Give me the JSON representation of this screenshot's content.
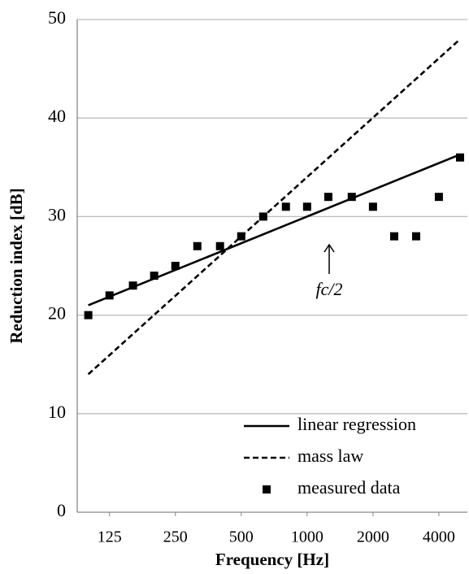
{
  "chart_data": {
    "type": "line",
    "x_label": "Frequency [Hz]",
    "y_label": "Reduction index [dB]",
    "xscale": "log",
    "xlim": [
      89,
      5400
    ],
    "xticks": [
      125,
      250,
      500,
      1000,
      2000,
      4000
    ],
    "ylim": [
      0,
      50
    ],
    "yticks": [
      0,
      10,
      20,
      30,
      40,
      50
    ],
    "grid": true,
    "legend": "lower right",
    "annotation": "fc/2",
    "series": [
      {
        "name": "linear regression",
        "color": "#000000",
        "line_style": "solid",
        "marker": "none",
        "x": [
          100,
          5000
        ],
        "values": [
          21,
          36.3
        ]
      },
      {
        "name": "mass law",
        "color": "#000000",
        "line_style": "dashed",
        "marker": "none",
        "x": [
          100,
          5000
        ],
        "values": [
          14,
          48
        ]
      },
      {
        "name": "measured data",
        "color": "#000000",
        "line_style": "none",
        "marker": "square",
        "x": [
          100,
          125,
          160,
          200,
          250,
          315,
          400,
          500,
          630,
          800,
          1000,
          1250,
          1600,
          2000,
          2500,
          3150,
          4000,
          5000
        ],
        "values": [
          20,
          22,
          23,
          24,
          25,
          27,
          27,
          28,
          30,
          31,
          31,
          32,
          32,
          31,
          28,
          28,
          32,
          36
        ]
      }
    ]
  }
}
